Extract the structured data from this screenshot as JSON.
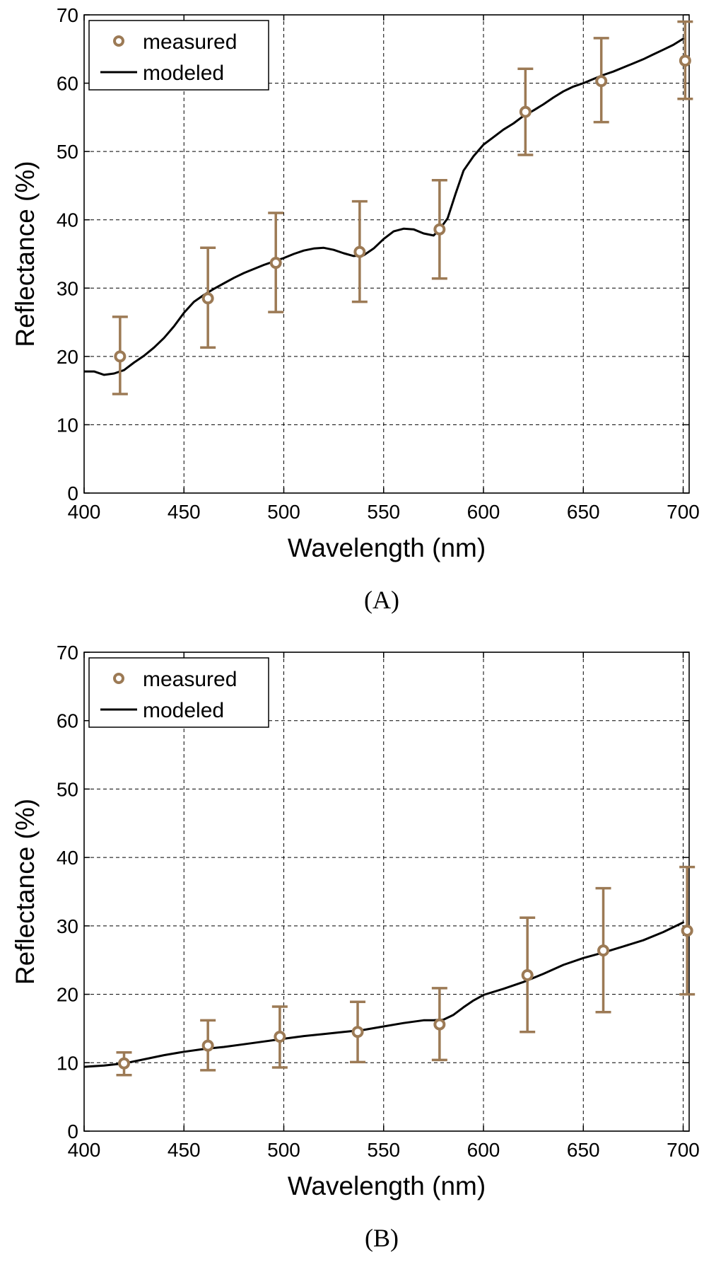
{
  "chart_data": [
    {
      "type": "line",
      "panel_label": "(A)",
      "xlabel": "Wavelength (nm)",
      "ylabel": "Reflectance (%)",
      "xlim": [
        400,
        703
      ],
      "ylim": [
        0,
        70
      ],
      "xticks": [
        "400",
        "450",
        "500",
        "550",
        "600",
        "650",
        "700"
      ],
      "yticks": [
        "0",
        "10",
        "20",
        "30",
        "40",
        "50",
        "60",
        "70"
      ],
      "grid": true,
      "legend_position": "top-left",
      "legend": [
        {
          "label": "measured",
          "marker": "circle-errorbar",
          "color": "#9c7a55"
        },
        {
          "label": "modeled",
          "marker": "line",
          "color": "#000000"
        }
      ],
      "series": [
        {
          "name": "measured",
          "x": [
            418,
            462,
            496,
            538,
            578,
            621,
            659,
            701
          ],
          "y": [
            20.0,
            28.5,
            33.7,
            35.3,
            38.6,
            55.8,
            60.3,
            63.3
          ],
          "err_low": [
            14.5,
            21.3,
            26.5,
            28.0,
            31.4,
            49.5,
            54.3,
            57.7
          ],
          "err_high": [
            25.8,
            35.9,
            41.0,
            42.7,
            45.8,
            62.1,
            66.6,
            69.0
          ]
        },
        {
          "name": "modeled",
          "x": [
            400,
            405,
            410,
            415,
            420,
            425,
            430,
            435,
            440,
            445,
            450,
            455,
            460,
            465,
            470,
            475,
            480,
            485,
            490,
            495,
            500,
            505,
            510,
            515,
            520,
            525,
            530,
            535,
            540,
            545,
            550,
            555,
            560,
            565,
            570,
            575,
            578,
            582,
            586,
            590,
            595,
            600,
            605,
            610,
            615,
            620,
            625,
            630,
            635,
            640,
            645,
            650,
            655,
            660,
            665,
            670,
            675,
            680,
            685,
            690,
            695,
            700
          ],
          "y": [
            17.8,
            17.8,
            17.3,
            17.5,
            18.0,
            19.1,
            20.1,
            21.3,
            22.7,
            24.4,
            26.4,
            28.0,
            29.0,
            29.9,
            30.7,
            31.5,
            32.2,
            32.8,
            33.4,
            33.9,
            34.4,
            35.0,
            35.5,
            35.8,
            35.9,
            35.6,
            35.1,
            34.7,
            34.8,
            35.8,
            37.2,
            38.3,
            38.7,
            38.6,
            38.0,
            37.7,
            38.6,
            40.2,
            43.8,
            47.2,
            49.3,
            51.0,
            52.1,
            53.2,
            54.1,
            55.2,
            56.0,
            56.9,
            57.9,
            58.8,
            59.5,
            60.0,
            60.6,
            61.2,
            61.7,
            62.3,
            62.9,
            63.5,
            64.2,
            64.9,
            65.6,
            66.5
          ]
        }
      ]
    },
    {
      "type": "line",
      "panel_label": "(B)",
      "xlabel": "Wavelength (nm)",
      "ylabel": "Reflectance (%)",
      "xlim": [
        400,
        703
      ],
      "ylim": [
        0,
        70
      ],
      "xticks": [
        "400",
        "450",
        "500",
        "550",
        "600",
        "650",
        "700"
      ],
      "yticks": [
        "0",
        "10",
        "20",
        "30",
        "40",
        "50",
        "60",
        "70"
      ],
      "grid": true,
      "legend_position": "top-left",
      "legend": [
        {
          "label": "measured",
          "marker": "circle-errorbar",
          "color": "#9c7a55"
        },
        {
          "label": "modeled",
          "marker": "line",
          "color": "#000000"
        }
      ],
      "series": [
        {
          "name": "measured",
          "x": [
            420,
            462,
            498,
            537,
            578,
            622,
            660,
            702
          ],
          "y": [
            9.9,
            12.5,
            13.8,
            14.5,
            15.6,
            22.8,
            26.4,
            29.3
          ],
          "err_low": [
            8.2,
            8.9,
            9.3,
            10.1,
            10.4,
            14.5,
            17.4,
            20.0
          ],
          "err_high": [
            11.5,
            16.2,
            18.2,
            18.9,
            20.9,
            31.2,
            35.5,
            38.6
          ]
        },
        {
          "name": "modeled",
          "x": [
            400,
            410,
            420,
            430,
            440,
            450,
            460,
            470,
            480,
            490,
            500,
            510,
            520,
            530,
            540,
            550,
            560,
            570,
            575,
            580,
            585,
            590,
            595,
            600,
            610,
            620,
            630,
            640,
            650,
            660,
            670,
            680,
            690,
            700
          ],
          "y": [
            9.4,
            9.6,
            9.9,
            10.5,
            11.1,
            11.6,
            12.0,
            12.3,
            12.7,
            13.1,
            13.5,
            13.9,
            14.2,
            14.5,
            14.8,
            15.3,
            15.8,
            16.2,
            16.2,
            16.3,
            17.0,
            18.1,
            19.1,
            19.9,
            20.8,
            21.8,
            23.0,
            24.3,
            25.3,
            26.1,
            27.0,
            27.9,
            29.1,
            30.5
          ]
        }
      ]
    }
  ]
}
